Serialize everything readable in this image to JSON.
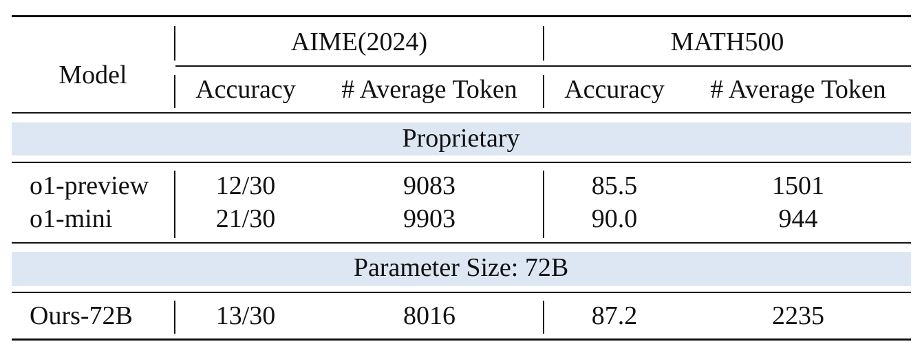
{
  "table": {
    "header": {
      "model_label": "Model",
      "groups": [
        {
          "name": "AIME(2024)",
          "cols": [
            "Accuracy",
            "# Average Token"
          ]
        },
        {
          "name": "MATH500",
          "cols": [
            "Accuracy",
            "# Average Token"
          ]
        }
      ]
    },
    "sections": [
      {
        "title": "Proprietary",
        "rows": [
          {
            "model": "o1-preview",
            "aime_acc": "12/30",
            "aime_tok": "9083",
            "math_acc": "85.5",
            "math_tok": "1501"
          },
          {
            "model": "o1-mini",
            "aime_acc": "21/30",
            "aime_tok": "9903",
            "math_acc": "90.0",
            "math_tok": "944"
          }
        ]
      },
      {
        "title": "Parameter Size: 72B",
        "rows": [
          {
            "model": "Ours-72B",
            "aime_acc": "13/30",
            "aime_tok": "8016",
            "math_acc": "87.2",
            "math_tok": "2235"
          }
        ]
      }
    ],
    "colors": {
      "section_band": "#dde7f4",
      "rule": "#111111"
    }
  }
}
